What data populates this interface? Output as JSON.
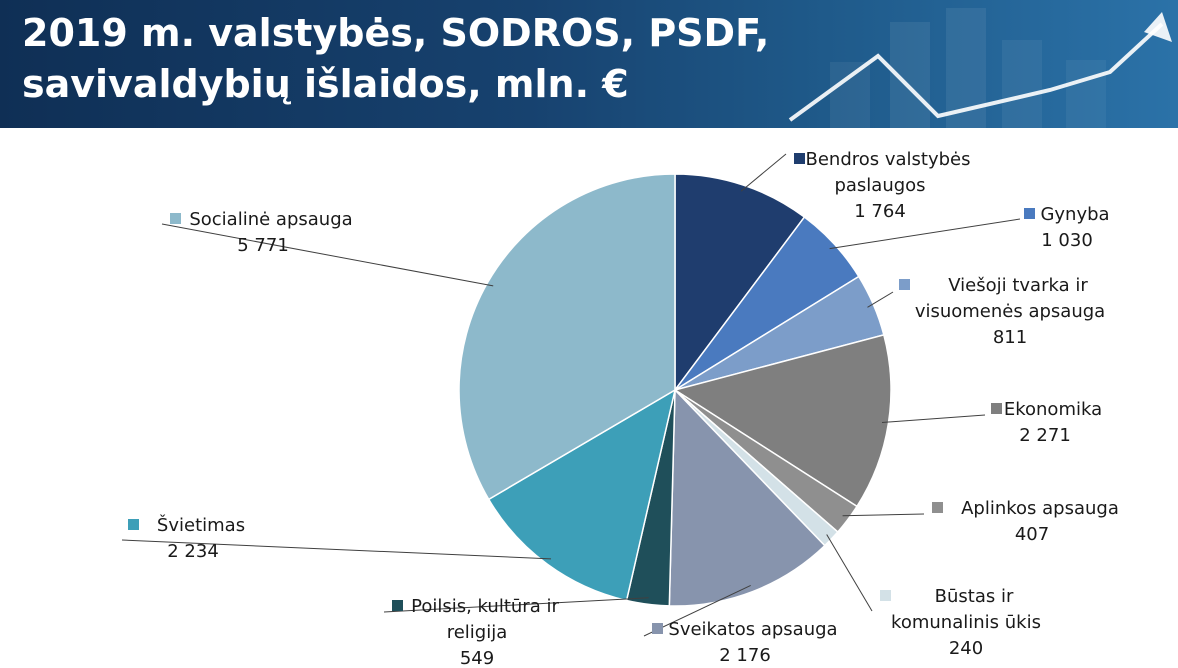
{
  "header": {
    "title_line1": "2019 m. valstybės, SODROS, PSDF,",
    "title_line2": "savivaldybių išlaidos, mln. €"
  },
  "chart_data": {
    "type": "pie",
    "title": "2019 m. valstybės, SODROS, PSDF, savivaldybių išlaidos, mln. €",
    "start_angle_deg": 0,
    "direction": "clockwise",
    "slices": [
      {
        "label": "Bendros valstybės paslaugos",
        "label_lines": [
          "Bendros valstybės",
          "paslaugos"
        ],
        "value": 1764,
        "value_text": "1 764",
        "color": "#1f3d6e"
      },
      {
        "label": "Gynyba",
        "label_lines": [
          "Gynyba"
        ],
        "value": 1030,
        "value_text": "1 030",
        "color": "#4a7abf"
      },
      {
        "label": "Viešoji tvarka ir visuomenės apsauga",
        "label_lines": [
          "Viešoji tvarka ir",
          "visuomenės apsauga"
        ],
        "value": 811,
        "value_text": "811",
        "color": "#7c9dc9"
      },
      {
        "label": "Ekonomika",
        "label_lines": [
          "Ekonomika"
        ],
        "value": 2271,
        "value_text": "2 271",
        "color": "#7f7f7f"
      },
      {
        "label": "Aplinkos apsauga",
        "label_lines": [
          "Aplinkos apsauga"
        ],
        "value": 407,
        "value_text": "407",
        "color": "#8f8f8f"
      },
      {
        "label": "Būstas ir komunalinis ūkis",
        "label_lines": [
          "Būstas ir",
          "komunalinis ūkis"
        ],
        "value": 240,
        "value_text": "240",
        "color": "#d3e1e7"
      },
      {
        "label": "Sveikatos apsauga",
        "label_lines": [
          "Sveikatos apsauga"
        ],
        "value": 2176,
        "value_text": "2 176",
        "color": "#8794ad"
      },
      {
        "label": "Poilsis, kultūra ir religija",
        "label_lines": [
          "Poilsis, kultūra ir",
          "religija"
        ],
        "value": 549,
        "value_text": "549",
        "color": "#1f4f5a"
      },
      {
        "label": "Švietimas",
        "label_lines": [
          "Švietimas"
        ],
        "value": 2234,
        "value_text": "2 234",
        "color": "#3d9fb8"
      },
      {
        "label": "Socialinė apsauga",
        "label_lines": [
          "Socialinė apsauga"
        ],
        "value": 5771,
        "value_text": "5 771",
        "color": "#8db9cb"
      }
    ]
  }
}
